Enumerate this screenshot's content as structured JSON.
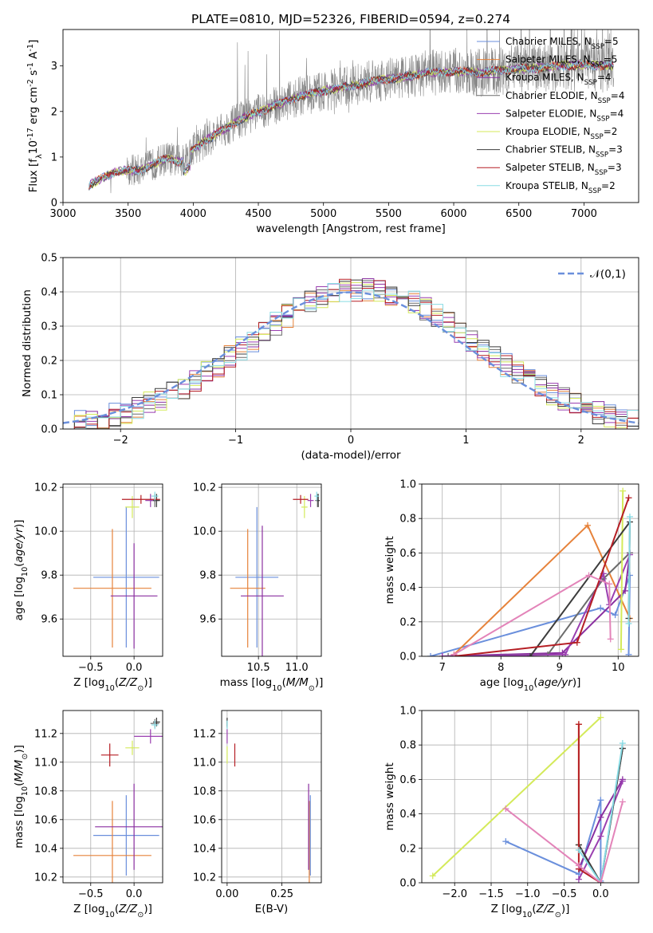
{
  "figure": {
    "title": "PLATE=0810, MJD=52326, FIBERID=0594, z=0.274"
  },
  "colors": {
    "Chabrier MILES": "#6a8fdc",
    "Salpeter MILES": "#e6823a",
    "Kroupa MILES": "#8a2fa0",
    "Chabrier ELODIE": "#6b6b6b",
    "Salpeter ELODIE": "#9a3fb0",
    "Kroupa ELODIE": "#d4ea5a",
    "Chabrier STELIB": "#3c3c3c",
    "Salpeter STELIB": "#b51e24",
    "Kroupa STELIB": "#88dbe4",
    "data": "#888888",
    "gaussian": "#6a8fdc"
  },
  "chart_data": [
    {
      "id": "spectrum",
      "type": "line",
      "xlabel": "wavelength [Angstrom, rest frame]",
      "ylabel": "Flux [f$_\\lambda$10$^{-17}$ erg cm$^{-2}$ s$^{-1}$ A$^{-1}$]",
      "xlim": [
        3000,
        7420
      ],
      "ylim": [
        0,
        3.8
      ],
      "xticks": [
        "3000",
        "3500",
        "4000",
        "4500",
        "5000",
        "5500",
        "6000",
        "6500",
        "7000"
      ],
      "yticks": [
        "0",
        "1",
        "2",
        "3"
      ],
      "legend_position": "top-right",
      "legend": [
        {
          "model": "Chabrier MILES",
          "text": "Chabrier MILES, N",
          "sub": "SSP",
          "tail": "=5"
        },
        {
          "model": "Salpeter MILES",
          "text": "Salpeter MILES, N",
          "sub": "SSP",
          "tail": "=5"
        },
        {
          "model": "Kroupa MILES",
          "text": "Kroupa MILES, N",
          "sub": "SSP",
          "tail": "=4"
        },
        {
          "model": "Chabrier ELODIE",
          "text": "Chabrier ELODIE, N",
          "sub": "SSP",
          "tail": "=4"
        },
        {
          "model": "Salpeter ELODIE",
          "text": "Salpeter ELODIE, N",
          "sub": "SSP",
          "tail": "=4"
        },
        {
          "model": "Kroupa ELODIE",
          "text": "Kroupa ELODIE, N",
          "sub": "SSP",
          "tail": "=2"
        },
        {
          "model": "Chabrier STELIB",
          "text": "Chabrier STELIB, N",
          "sub": "SSP",
          "tail": "=3"
        },
        {
          "model": "Salpeter STELIB",
          "text": "Salpeter STELIB, N",
          "sub": "SSP",
          "tail": "=3"
        },
        {
          "model": "Kroupa STELIB",
          "text": "Kroupa STELIB, N",
          "sub": "SSP",
          "tail": "=2"
        }
      ],
      "continuum": {
        "x": [
          3200,
          3400,
          3600,
          3800,
          3900,
          4000,
          4200,
          4400,
          4600,
          4800,
          5000,
          5200,
          5400,
          5600,
          5800,
          6000,
          6200,
          6400,
          6600,
          6800,
          7000,
          7200
        ],
        "y": [
          0.38,
          0.68,
          0.72,
          0.98,
          0.88,
          1.18,
          1.55,
          1.88,
          2.1,
          2.32,
          2.45,
          2.55,
          2.68,
          2.75,
          2.85,
          2.88,
          2.85,
          2.92,
          2.95,
          3.0,
          3.02,
          3.0
        ]
      },
      "data_range": [
        3200,
        7230
      ]
    },
    {
      "id": "residuals",
      "type": "step",
      "xlabel": "(data-model)/error",
      "ylabel": "Normed distribution",
      "xlim": [
        -2.5,
        2.5
      ],
      "ylim": [
        0,
        0.5
      ],
      "xticks": [
        "−2",
        "−1",
        "0",
        "1",
        "2"
      ],
      "yticks": [
        "0.0",
        "0.1",
        "0.2",
        "0.3",
        "0.4",
        "0.5"
      ],
      "legend": "$\\mathcal{N}(0,1)$",
      "legend_position": "top-right",
      "bin_width": 0.1,
      "reference_curve": "standard normal"
    },
    {
      "id": "age_vs_Z",
      "type": "errorbar",
      "xlabel": "Z [log$_{10}$($Z/Z_\\odot$)]",
      "ylabel": "age  [log$_{10}$($age/yr$)]",
      "xlim": [
        -0.82,
        0.33
      ],
      "ylim": [
        9.43,
        10.215
      ],
      "xticks": [
        "−0.5",
        "0.0"
      ],
      "yticks": [
        "9.6",
        "9.8",
        "10.0",
        "10.2"
      ],
      "points": [
        {
          "model": "Chabrier MILES",
          "x": -0.09,
          "y": 9.79,
          "xerr": 0.38,
          "yerr": 0.32
        },
        {
          "model": "Salpeter MILES",
          "x": -0.25,
          "y": 9.74,
          "xerr": 0.45,
          "yerr": 0.27
        },
        {
          "model": "Kroupa MILES",
          "x": 0.0,
          "y": 9.705,
          "xerr": 0.27,
          "yerr": 0.24
        },
        {
          "model": "Chabrier ELODIE",
          "x": 0.24,
          "y": 10.14,
          "xerr": 0.05,
          "yerr": 0.03
        },
        {
          "model": "Salpeter ELODIE",
          "x": 0.19,
          "y": 10.14,
          "xerr": 0.06,
          "yerr": 0.03
        },
        {
          "model": "Kroupa ELODIE",
          "x": -0.02,
          "y": 10.11,
          "xerr": 0.08,
          "yerr": 0.05
        },
        {
          "model": "Chabrier STELIB",
          "x": 0.26,
          "y": 10.14,
          "xerr": 0.04,
          "yerr": 0.03
        },
        {
          "model": "Salpeter STELIB",
          "x": 0.08,
          "y": 10.145,
          "xerr": 0.22,
          "yerr": 0.02
        },
        {
          "model": "Kroupa STELIB",
          "x": 0.24,
          "y": 10.16,
          "xerr": 0.04,
          "yerr": 0.02
        }
      ]
    },
    {
      "id": "age_vs_mass",
      "type": "errorbar",
      "xlabel": "mass [log$_{10}$($M/M_\\odot$)]",
      "ylabel": "",
      "xlim": [
        10.02,
        11.32
      ],
      "ylim": [
        9.43,
        10.215
      ],
      "xticks": [
        "10.5",
        "11.0"
      ],
      "yticks": [
        "9.6",
        "9.8",
        "10.0",
        "10.2"
      ],
      "points": [
        {
          "model": "Chabrier MILES",
          "x": 10.48,
          "y": 9.79,
          "xerr": 0.28,
          "yerr": 0.32
        },
        {
          "model": "Salpeter MILES",
          "x": 10.36,
          "y": 9.74,
          "xerr": 0.23,
          "yerr": 0.27
        },
        {
          "model": "Kroupa MILES",
          "x": 10.55,
          "y": 9.705,
          "xerr": 0.28,
          "yerr": 0.32
        },
        {
          "model": "Chabrier ELODIE",
          "x": 11.27,
          "y": 10.14,
          "xerr": 0.03,
          "yerr": 0.03
        },
        {
          "model": "Salpeter ELODIE",
          "x": 11.18,
          "y": 10.14,
          "xerr": 0.04,
          "yerr": 0.03
        },
        {
          "model": "Kroupa ELODIE",
          "x": 11.1,
          "y": 10.11,
          "xerr": 0.04,
          "yerr": 0.05
        },
        {
          "model": "Chabrier STELIB",
          "x": 11.28,
          "y": 10.14,
          "xerr": 0.02,
          "yerr": 0.03
        },
        {
          "model": "Salpeter STELIB",
          "x": 11.05,
          "y": 10.145,
          "xerr": 0.1,
          "yerr": 0.02
        },
        {
          "model": "Kroupa STELIB",
          "x": 11.26,
          "y": 10.16,
          "xerr": 0.03,
          "yerr": 0.02
        }
      ]
    },
    {
      "id": "weight_vs_age",
      "type": "line",
      "xlabel": "age  [log$_{10}$($age/yr$)]",
      "ylabel": "mass weight",
      "xlim": [
        6.65,
        10.35
      ],
      "ylim": [
        0,
        1.0
      ],
      "xticks": [
        "7",
        "8",
        "9",
        "10"
      ],
      "yticks": [
        "0.0",
        "0.2",
        "0.4",
        "0.6",
        "0.8",
        "1.0"
      ],
      "series": [
        {
          "model": "Chabrier MILES",
          "x": [
            6.8,
            9.7,
            9.95,
            10.2,
            10.18
          ],
          "y": [
            0.0,
            0.28,
            0.24,
            0.47,
            0.01
          ]
        },
        {
          "model": "Salpeter MILES",
          "x": [
            7.2,
            9.48,
            10.2
          ],
          "y": [
            0.01,
            0.76,
            0.22
          ]
        },
        {
          "model": "Kroupa MILES",
          "x": [
            7.0,
            9.05,
            10.12,
            10.2
          ],
          "y": [
            0.0,
            0.02,
            0.38,
            0.6
          ]
        },
        {
          "model": "Chabrier ELODIE",
          "x": [
            7.1,
            8.8,
            9.75,
            10.2
          ],
          "y": [
            0.0,
            0.01,
            0.45,
            0.6
          ]
        },
        {
          "model": "Salpeter ELODIE",
          "x": [
            7.0,
            9.1,
            9.75,
            9.85,
            10.2
          ],
          "y": [
            0.0,
            0.01,
            0.48,
            0.3,
            0.59
          ]
        },
        {
          "model": "Kroupa ELODIE",
          "x": [
            10.05,
            10.08
          ],
          "y": [
            0.04,
            0.96
          ]
        },
        {
          "model": "Chabrier STELIB",
          "x": [
            8.5,
            10.2,
            10.18
          ],
          "y": [
            0.0,
            0.78,
            0.22
          ]
        },
        {
          "model": "Salpeter STELIB",
          "x": [
            7.2,
            9.3,
            10.18
          ],
          "y": [
            0.0,
            0.08,
            0.92
          ]
        },
        {
          "model": "Kroupa STELIB",
          "x": [
            10.18,
            10.2
          ],
          "y": [
            0.19,
            0.81
          ]
        },
        {
          "model": "pink",
          "x": [
            7.2,
            9.5,
            9.85,
            9.87
          ],
          "y": [
            0.01,
            0.47,
            0.42,
            0.1
          ]
        }
      ]
    },
    {
      "id": "mass_vs_Z",
      "type": "errorbar",
      "xlabel": "Z [log$_{10}$($Z/Z_\\odot$)]",
      "ylabel": "mass [log$_{10}$($M/M_\\odot$)]",
      "xlim": [
        -0.82,
        0.33
      ],
      "ylim": [
        10.16,
        11.36
      ],
      "xticks": [
        "−0.5",
        "0.0"
      ],
      "yticks": [
        "10.2",
        "10.4",
        "10.6",
        "10.8",
        "11.0",
        "11.2"
      ],
      "points": [
        {
          "model": "Chabrier MILES",
          "x": -0.09,
          "y": 10.49,
          "xerr": 0.38,
          "yerr": 0.28
        },
        {
          "model": "Salpeter MILES",
          "x": -0.25,
          "y": 10.35,
          "xerr": 0.45,
          "yerr": 0.38
        },
        {
          "model": "Kroupa MILES",
          "x": 0.0,
          "y": 10.55,
          "xerr": 0.45,
          "yerr": 0.3
        },
        {
          "model": "Chabrier ELODIE",
          "x": 0.24,
          "y": 11.27,
          "xerr": 0.05,
          "yerr": 0.03
        },
        {
          "model": "Salpeter ELODIE",
          "x": 0.19,
          "y": 11.18,
          "xerr": 0.19,
          "yerr": 0.05
        },
        {
          "model": "Kroupa ELODIE",
          "x": -0.02,
          "y": 11.1,
          "xerr": 0.08,
          "yerr": 0.05
        },
        {
          "model": "Chabrier STELIB",
          "x": 0.26,
          "y": 11.28,
          "xerr": 0.04,
          "yerr": 0.03
        },
        {
          "model": "Salpeter STELIB",
          "x": -0.28,
          "y": 11.05,
          "xerr": 0.1,
          "yerr": 0.08
        },
        {
          "model": "Kroupa STELIB",
          "x": 0.24,
          "y": 11.26,
          "xerr": 0.04,
          "yerr": 0.03
        }
      ]
    },
    {
      "id": "mass_vs_EBV",
      "type": "errorbar",
      "xlabel": "E(B-V)",
      "ylabel": "",
      "xlim": [
        -0.025,
        0.43
      ],
      "ylim": [
        10.16,
        11.36
      ],
      "xticks": [
        "0.00",
        "0.25"
      ],
      "yticks": [
        "10.2",
        "10.4",
        "10.6",
        "10.8",
        "11.0",
        "11.2"
      ],
      "points": [
        {
          "model": "Chabrier MILES",
          "x": 0.38,
          "y": 10.49,
          "xerr": 0.0,
          "yerr": 0.28
        },
        {
          "model": "Salpeter MILES",
          "x": 0.375,
          "y": 10.35,
          "xerr": 0.0,
          "yerr": 0.38
        },
        {
          "model": "Kroupa MILES",
          "x": 0.372,
          "y": 10.55,
          "xerr": 0.0,
          "yerr": 0.3
        },
        {
          "model": "Chabrier ELODIE",
          "x": 0.0,
          "y": 11.27,
          "xerr": 0.0,
          "yerr": 0.03
        },
        {
          "model": "Salpeter ELODIE",
          "x": 0.0,
          "y": 11.18,
          "xerr": 0.0,
          "yerr": 0.05
        },
        {
          "model": "Kroupa ELODIE",
          "x": 0.0,
          "y": 11.05,
          "xerr": 0.0,
          "yerr": 0.06
        },
        {
          "model": "Chabrier STELIB",
          "x": 0.0,
          "y": 11.28,
          "xerr": 0.0,
          "yerr": 0.03
        },
        {
          "model": "Salpeter STELIB",
          "x": 0.035,
          "y": 11.05,
          "xerr": 0.0,
          "yerr": 0.08
        },
        {
          "model": "Kroupa STELIB",
          "x": 0.0,
          "y": 11.26,
          "xerr": 0.0,
          "yerr": 0.03
        }
      ]
    },
    {
      "id": "weight_vs_Z",
      "type": "line",
      "xlabel": "Z [log$_{10}$($Z/Z_\\odot$)]",
      "ylabel": "mass weight",
      "xlim": [
        -2.45,
        0.52
      ],
      "ylim": [
        0,
        1.0
      ],
      "xticks": [
        "−2.0",
        "−1.5",
        "−1.0",
        "−0.5",
        "0.0"
      ],
      "yticks": [
        "0.0",
        "0.2",
        "0.4",
        "0.6",
        "0.8",
        "1.0"
      ],
      "series": [
        {
          "model": "Chabrier MILES",
          "x": [
            -1.3,
            -0.3,
            0.0,
            0.0
          ],
          "y": [
            0.24,
            0.05,
            0.48,
            0.01
          ]
        },
        {
          "model": "Salpeter MILES",
          "x": [
            -0.3,
            -0.3,
            0.0
          ],
          "y": [
            0.92,
            0.22,
            0.0
          ]
        },
        {
          "model": "Kroupa MILES",
          "x": [
            -0.3,
            0.0,
            0.3
          ],
          "y": [
            0.08,
            0.38,
            0.6
          ]
        },
        {
          "model": "Chabrier ELODIE",
          "x": [
            -0.3,
            0.0,
            0.3
          ],
          "y": [
            0.22,
            0.0,
            0.78
          ]
        },
        {
          "model": "Salpeter ELODIE",
          "x": [
            -0.3,
            0.0,
            0.3
          ],
          "y": [
            0.02,
            0.27,
            0.59
          ]
        },
        {
          "model": "Kroupa ELODIE",
          "x": [
            -2.3,
            0.0
          ],
          "y": [
            0.04,
            0.96
          ]
        },
        {
          "model": "Chabrier STELIB",
          "x": [
            -0.3,
            0.0,
            0.3
          ],
          "y": [
            0.22,
            0.0,
            0.78
          ]
        },
        {
          "model": "Salpeter STELIB",
          "x": [
            -0.3,
            -0.3,
            0.0
          ],
          "y": [
            0.92,
            0.08,
            0.0
          ]
        },
        {
          "model": "Kroupa STELIB",
          "x": [
            -0.3,
            0.0,
            0.3
          ],
          "y": [
            0.19,
            0.0,
            0.81
          ]
        },
        {
          "model": "pink",
          "x": [
            -1.3,
            -0.3,
            0.0,
            0.3
          ],
          "y": [
            0.43,
            0.1,
            0.0,
            0.47
          ]
        }
      ]
    }
  ]
}
